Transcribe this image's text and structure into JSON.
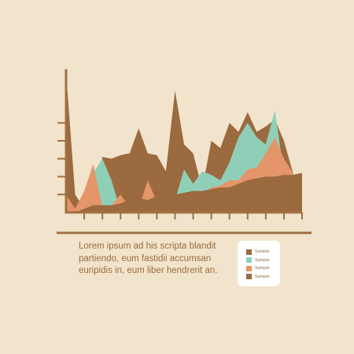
{
  "caption": {
    "lines": [
      "Lorem ipsum ad his scripta blandit",
      "partiendo, eum fastidii accumsan",
      "euripidis in, eum liber hendrerit an."
    ]
  },
  "legend": {
    "items": [
      {
        "label": "Sample",
        "color": "#9b6a3e"
      },
      {
        "label": "Sample",
        "color": "#8fcfb8"
      },
      {
        "label": "Sample",
        "color": "#e4956a"
      },
      {
        "label": "Sample",
        "color": "#9b6a3e"
      }
    ]
  },
  "colors": {
    "background": "#f2e4cc",
    "axis": "#a06f42",
    "text": "#9b6a3e"
  },
  "chart_data": {
    "type": "area",
    "title": "",
    "xlabel": "",
    "ylabel": "",
    "x": [
      0,
      0.5,
      1,
      1.5,
      2,
      2.5,
      3,
      3.5,
      4,
      4.5,
      5,
      5.5,
      6,
      6.5,
      7,
      7.5,
      8,
      8.5,
      9,
      9.5,
      10,
      10.5,
      11,
      11.5,
      12,
      12.5,
      13
    ],
    "xlim": [
      0,
      13
    ],
    "ylim": [
      0,
      8
    ],
    "x_ticks": [
      1,
      2,
      3,
      4,
      5,
      6,
      7,
      8,
      9,
      10,
      11,
      12,
      13
    ],
    "y_ticks": [
      1,
      2,
      3,
      4,
      5
    ],
    "grid": false,
    "series": [
      {
        "color": "#9b6a3e",
        "values": [
          7.8,
          1.0,
          0.2,
          0.4,
          3.1,
          3.0,
          3.2,
          3.3,
          4.7,
          3.3,
          3.2,
          2.3,
          6.8,
          3.8,
          3.3,
          1.3,
          4.0,
          3.6,
          5.0,
          4.5,
          5.6,
          4.5,
          4.8,
          5.2,
          4.0,
          2.2,
          0.0
        ]
      },
      {
        "color": "#8fcfb8",
        "values": [
          0.0,
          0.0,
          0.8,
          2.2,
          3.0,
          1.8,
          0.1,
          0.1,
          0.1,
          0.2,
          0.2,
          0.6,
          0.7,
          2.4,
          1.6,
          2.3,
          2.1,
          1.8,
          2.8,
          4.2,
          5.0,
          4.2,
          3.8,
          5.7,
          2.2,
          2.2,
          0.0
        ]
      },
      {
        "color": "#e4956a",
        "values": [
          1.0,
          0.2,
          1.2,
          2.7,
          0.3,
          0.4,
          1.0,
          0.3,
          0.2,
          1.8,
          0.6,
          0.6,
          0.8,
          0.4,
          0.4,
          0.9,
          1.4,
          1.5,
          1.8,
          1.8,
          2.4,
          2.5,
          3.3,
          4.2,
          3.0,
          2.2,
          0.0
        ]
      },
      {
        "color": "#9b6a3e",
        "values": [
          0.0,
          0.0,
          0.2,
          0.4,
          0.4,
          0.4,
          0.5,
          0.7,
          0.8,
          0.7,
          0.9,
          1.0,
          1.0,
          1.1,
          1.2,
          1.2,
          1.3,
          1.4,
          1.4,
          1.6,
          1.8,
          1.9,
          2.0,
          2.0,
          2.1,
          2.1,
          2.2
        ]
      }
    ]
  }
}
